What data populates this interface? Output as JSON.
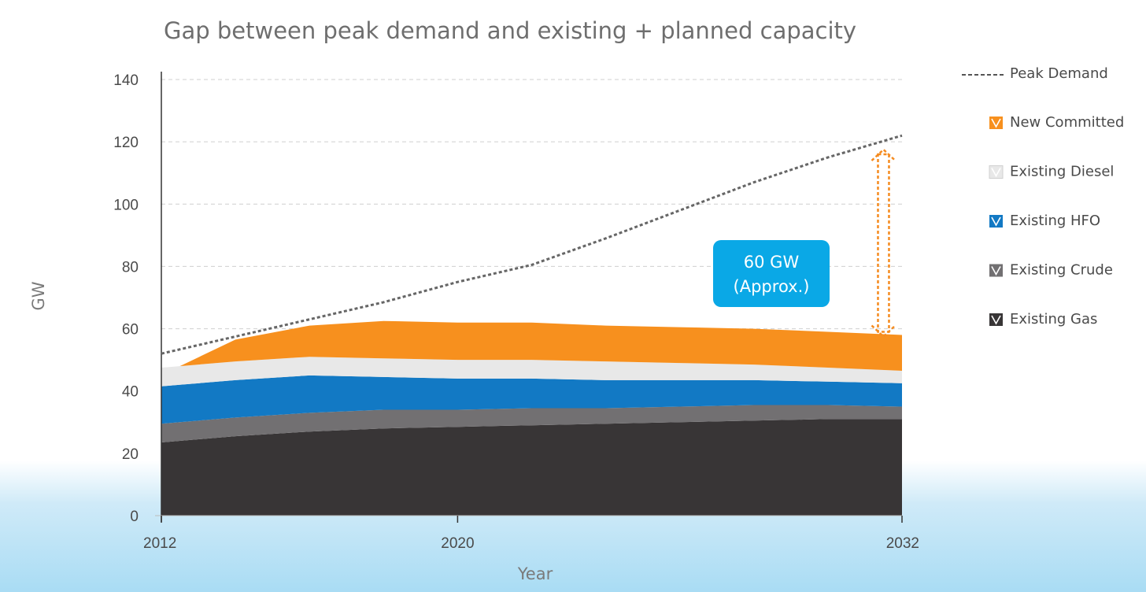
{
  "chart_data": {
    "type": "area",
    "title": "Gap between peak demand and existing + planned capacity",
    "xlabel": "Year",
    "ylabel": "GW",
    "xlim": [
      2012,
      2032
    ],
    "ylim": [
      0,
      140
    ],
    "yticks": [
      0,
      20,
      40,
      60,
      80,
      100,
      120,
      140
    ],
    "xticks": [
      2012,
      2020,
      2032
    ],
    "grid": true,
    "legend_position": "right",
    "x": [
      2012,
      2012.5,
      2014,
      2016,
      2018,
      2020,
      2022,
      2024,
      2026,
      2028,
      2030,
      2032
    ],
    "series": [
      {
        "name": "Existing Gas",
        "color": "#383536",
        "values": [
          23.5,
          24,
          25.5,
          27,
          28,
          28.5,
          29,
          29.5,
          30,
          30.5,
          31,
          31
        ]
      },
      {
        "name": "Existing Crude",
        "color": "#727072",
        "values": [
          6,
          6,
          6,
          6,
          6,
          5.5,
          5.5,
          5,
          5,
          5,
          4.5,
          4
        ]
      },
      {
        "name": "Existing HFO",
        "color": "#1279c4",
        "values": [
          12,
          12,
          12,
          12,
          10.5,
          10,
          9.5,
          9,
          8.5,
          8,
          7.5,
          7.5
        ]
      },
      {
        "name": "Existing Diesel",
        "color": "#e8e8e8",
        "values": [
          6,
          6,
          6,
          6,
          6,
          6,
          6,
          6,
          5.5,
          5,
          4.5,
          4
        ]
      },
      {
        "name": "New Committed",
        "color": "#f7901e",
        "values": [
          0,
          0,
          7,
          10,
          12,
          12,
          12,
          11.5,
          11.5,
          11.5,
          11.5,
          11.5
        ]
      }
    ],
    "line_series": {
      "name": "Peak Demand",
      "x": [
        2012,
        2014,
        2016,
        2018,
        2020,
        2022,
        2024,
        2026,
        2028,
        2030,
        2032
      ],
      "values": [
        52,
        57.5,
        63,
        68.5,
        75,
        80.5,
        89,
        98,
        107,
        115,
        122
      ]
    },
    "annotation": {
      "line1": "60 GW",
      "line2": "(Approx.)",
      "color": "#0aa8e6",
      "arrow_color": "#f58b1f",
      "arrow_year": 2031.5,
      "arrow_from": 58,
      "arrow_to": 117
    }
  }
}
